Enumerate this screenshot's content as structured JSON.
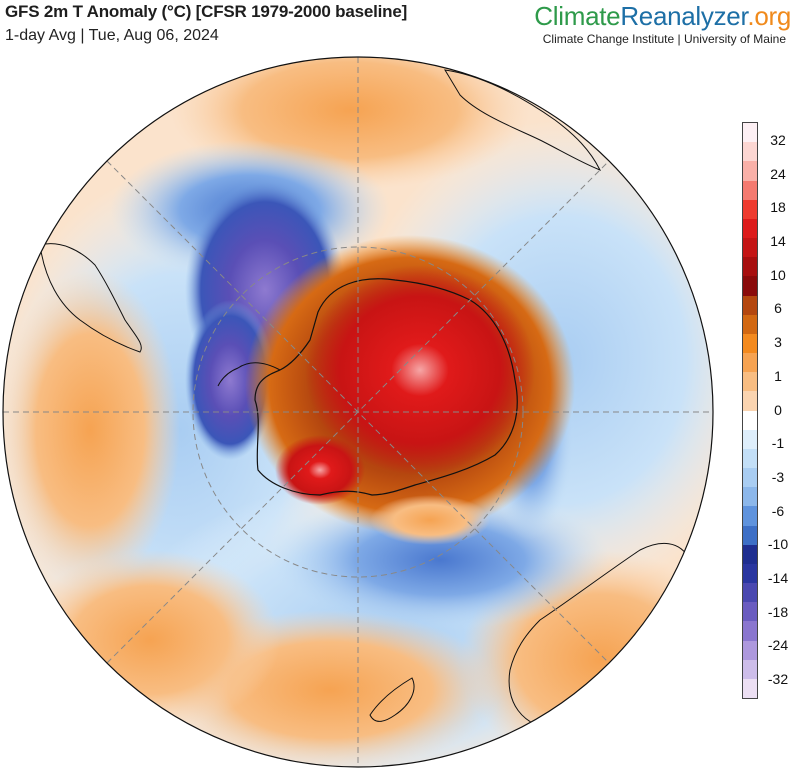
{
  "header": {
    "title": "GFS 2m T Anomaly (°C) [CFSR 1979-2000 baseline]",
    "subtitle": "1-day Avg | Tue, Aug 06, 2024"
  },
  "brand": {
    "name_part1": "Climate",
    "name_part2": "Reanalyzer",
    "name_part3": ".org",
    "tagline": "Climate Change Institute | University of Maine"
  },
  "map": {
    "projection": "orthographic, south polar view",
    "variable": "2m temperature anomaly",
    "units": "°C",
    "features": [
      {
        "region": "East Antarctica",
        "anomaly": "warm (+10 to +24)"
      },
      {
        "region": "Southern Ocean east of Antarctic Peninsula",
        "anomaly": "cold (-10 to -24)"
      },
      {
        "region": "South Pacific south of New Zealand",
        "anomaly": "cold (-6 to -14)"
      },
      {
        "region": "Ross Sea / Amundsen Sea coast",
        "anomaly": "warm (+6 to +14)"
      },
      {
        "region": "South America",
        "anomaly": "warm (+1 to +6)"
      },
      {
        "region": "Australia",
        "anomaly": "warm (+1 to +6)"
      }
    ]
  },
  "colorbar": {
    "colors": [
      "#fdf0f4",
      "#fcd6d2",
      "#f9b0a8",
      "#f57a70",
      "#ee3b2f",
      "#dd1b1b",
      "#c41515",
      "#a70f0f",
      "#8a0b0b",
      "#b4470f",
      "#d26812",
      "#f38a1f",
      "#f6a352",
      "#f8bd82",
      "#fad4b0",
      "#ffffff",
      "#deeefb",
      "#c3dff7",
      "#a9cdf2",
      "#8cb7ea",
      "#5f93dd",
      "#3d6fc6",
      "#1f2e90",
      "#2a36a0",
      "#4a48b0",
      "#6a5cc0",
      "#8a76cf",
      "#ad98dd",
      "#cdbde9",
      "#ecdff3"
    ],
    "tick_labels": [
      "32",
      "24",
      "18",
      "14",
      "10",
      "6",
      "3",
      "1",
      "0",
      "-1",
      "-3",
      "-6",
      "-10",
      "-14",
      "-18",
      "-24",
      "-32"
    ]
  }
}
